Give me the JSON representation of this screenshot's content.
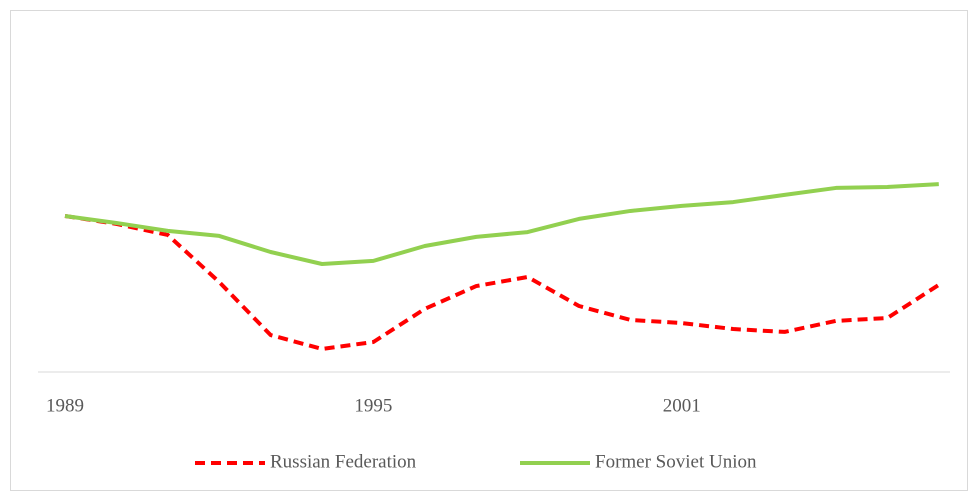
{
  "chart_data": {
    "type": "line",
    "categories": [
      "1989",
      null,
      null,
      null,
      null,
      null,
      "1995",
      null,
      null,
      null,
      null,
      null,
      "2001",
      null,
      null,
      null,
      null,
      null
    ],
    "series": [
      {
        "name": "Russian Federation",
        "color": "#ff0000",
        "dashed": true,
        "values": [
          69.5,
          69.17,
          68.71,
          66.75,
          64.54,
          63.96,
          64.25,
          65.63,
          66.58,
          66.96,
          65.75,
          65.17,
          65.04,
          64.79,
          64.67,
          65.13,
          65.25,
          66.63
        ]
      },
      {
        "name": "Former Soviet Union",
        "color": "#92d050",
        "dashed": false,
        "values": [
          69.5,
          69.21,
          68.88,
          68.67,
          68.0,
          67.5,
          67.63,
          68.25,
          68.63,
          68.83,
          69.38,
          69.71,
          69.92,
          70.08,
          70.38,
          70.67,
          70.71,
          70.83
        ]
      }
    ],
    "ylim": [
      63,
      78
    ],
    "legend": "bottom"
  }
}
